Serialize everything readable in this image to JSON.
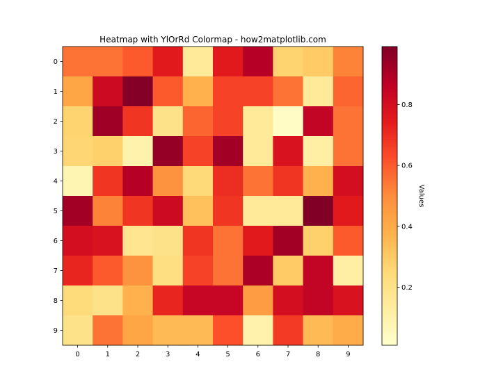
{
  "chart_data": {
    "type": "heatmap",
    "title": "Heatmap with YlOrRd Colormap - how2matplotlib.com",
    "x_categories": [
      "0",
      "1",
      "2",
      "3",
      "4",
      "5",
      "6",
      "7",
      "8",
      "9"
    ],
    "y_categories": [
      "0",
      "1",
      "2",
      "3",
      "4",
      "5",
      "6",
      "7",
      "8",
      "9"
    ],
    "colormap": "YlOrRd",
    "vmin": 0.01,
    "vmax": 0.99,
    "values": [
      [
        0.55,
        0.55,
        0.6,
        0.75,
        0.15,
        0.75,
        0.88,
        0.27,
        0.3,
        0.52
      ],
      [
        0.42,
        0.82,
        0.98,
        0.6,
        0.38,
        0.65,
        0.65,
        0.55,
        0.15,
        0.58
      ],
      [
        0.27,
        0.93,
        0.68,
        0.2,
        0.58,
        0.65,
        0.15,
        0.03,
        0.85,
        0.55
      ],
      [
        0.26,
        0.28,
        0.1,
        0.95,
        0.65,
        0.92,
        0.15,
        0.78,
        0.12,
        0.55
      ],
      [
        0.08,
        0.68,
        0.88,
        0.48,
        0.25,
        0.7,
        0.55,
        0.68,
        0.38,
        0.8
      ],
      [
        0.92,
        0.52,
        0.68,
        0.82,
        0.33,
        0.68,
        0.15,
        0.15,
        0.99,
        0.75
      ],
      [
        0.8,
        0.78,
        0.18,
        0.2,
        0.68,
        0.55,
        0.75,
        0.92,
        0.28,
        0.6
      ],
      [
        0.72,
        0.6,
        0.48,
        0.22,
        0.65,
        0.55,
        0.9,
        0.3,
        0.85,
        0.12
      ],
      [
        0.24,
        0.2,
        0.38,
        0.72,
        0.84,
        0.84,
        0.45,
        0.8,
        0.85,
        0.78
      ],
      [
        0.2,
        0.55,
        0.42,
        0.35,
        0.35,
        0.62,
        0.1,
        0.67,
        0.35,
        0.4
      ]
    ],
    "colorbar": {
      "label": "Values",
      "ticks": [
        0.2,
        0.4,
        0.6,
        0.8
      ],
      "tick_labels": [
        "0.2",
        "0.4",
        "0.6",
        "0.8"
      ]
    }
  }
}
